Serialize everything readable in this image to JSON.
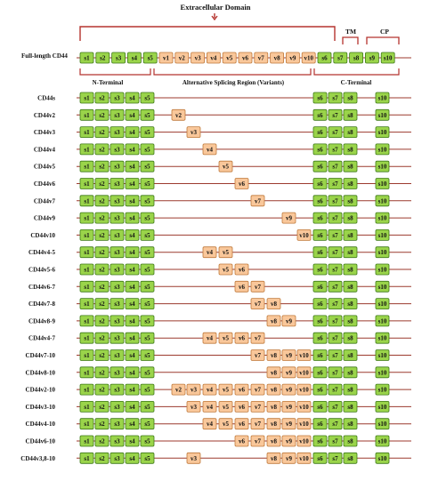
{
  "title": "Extracellular Domain",
  "colors": {
    "constant_fill": "#9ad44a",
    "constant_stroke": "#3f7a1a",
    "variant_fill": "#f9c79a",
    "variant_stroke": "#c07a3c",
    "line": "#9c3a2e",
    "bracket": "#b5332e",
    "arrow": "#b5332e"
  },
  "full_length": {
    "label": "Full-length CD44",
    "exons": [
      "s1",
      "s2",
      "s3",
      "s4",
      "s5",
      "v1",
      "v2",
      "v3",
      "v4",
      "v5",
      "v6",
      "v7",
      "v8",
      "v9",
      "v10",
      "s6",
      "s7",
      "s8",
      "s9",
      "s10"
    ]
  },
  "region_labels": {
    "tm": "TM",
    "cp": "CP",
    "n_terminal": "N-Terminal",
    "variants": "Alternative Splicing Region (Variants)",
    "c_terminal": "C-Terminal"
  },
  "constant_prefix": [
    "s1",
    "s2",
    "s3",
    "s4",
    "s5"
  ],
  "constant_suffix": [
    "s6",
    "s7",
    "s8"
  ],
  "tail_exon": "s10",
  "isoforms": [
    {
      "label": "CD44s",
      "variants": []
    },
    {
      "label": "CD44v2",
      "variants": [
        "v2"
      ]
    },
    {
      "label": "CD44v3",
      "variants": [
        "v3"
      ]
    },
    {
      "label": "CD44v4",
      "variants": [
        "v4"
      ]
    },
    {
      "label": "CD44v5",
      "variants": [
        "v5"
      ]
    },
    {
      "label": "CD44v6",
      "variants": [
        "v6"
      ]
    },
    {
      "label": "CD44v7",
      "variants": [
        "v7"
      ]
    },
    {
      "label": "CD44v9",
      "variants": [
        "v9"
      ]
    },
    {
      "label": "CD44v10",
      "variants": [
        "v10"
      ]
    },
    {
      "label": "CD44v4-5",
      "variants": [
        "v4",
        "v5"
      ]
    },
    {
      "label": "CD44v5-6",
      "variants": [
        "v5",
        "v6"
      ]
    },
    {
      "label": "CD44v6-7",
      "variants": [
        "v6",
        "v7"
      ]
    },
    {
      "label": "CD44v7-8",
      "variants": [
        "v7",
        "v8"
      ]
    },
    {
      "label": "CD44v8-9",
      "variants": [
        "v8",
        "v9"
      ]
    },
    {
      "label": "CD44v4-7",
      "variants": [
        "v4",
        "v5",
        "v6",
        "v7"
      ]
    },
    {
      "label": "CD44v7-10",
      "variants": [
        "v7",
        "v8",
        "v9",
        "v10"
      ]
    },
    {
      "label": "CD44v8-10",
      "variants": [
        "v8",
        "v9",
        "v10"
      ]
    },
    {
      "label": "CD44v2-10",
      "variants": [
        "v2",
        "v3",
        "v4",
        "v5",
        "v6",
        "v7",
        "v8",
        "v9",
        "v10"
      ]
    },
    {
      "label": "CD44v3-10",
      "variants": [
        "v3",
        "v4",
        "v5",
        "v6",
        "v7",
        "v8",
        "v9",
        "v10"
      ]
    },
    {
      "label": "CD44v4-10",
      "variants": [
        "v4",
        "v5",
        "v6",
        "v7",
        "v8",
        "v9",
        "v10"
      ]
    },
    {
      "label": "CD44v6-10",
      "variants": [
        "v6",
        "v7",
        "v8",
        "v9",
        "v10"
      ]
    },
    {
      "label": "CD44v3,8-10",
      "variants": [
        "v3",
        "v8",
        "v9",
        "v10"
      ]
    }
  ]
}
